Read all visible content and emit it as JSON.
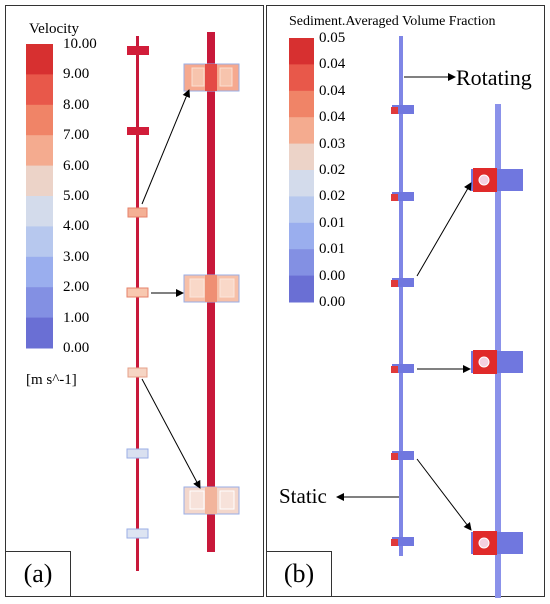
{
  "panel_a": {
    "label": "(a)",
    "colorbar": {
      "title": "Velocity",
      "ticks": [
        "10.00",
        "9.00",
        "8.00",
        "7.00",
        "6.00",
        "5.00",
        "4.00",
        "3.00",
        "2.00",
        "1.00",
        "0.00"
      ],
      "unit": "[m s^-1]",
      "colors": [
        "#d73030",
        "#e8584a",
        "#f08467",
        "#f4ab8f",
        "#ecd3c8",
        "#d3dbeb",
        "#b7c8ee",
        "#9aaeee",
        "#8390e3",
        "#6a6fd4"
      ]
    }
  },
  "panel_b": {
    "label": "(b)",
    "colorbar": {
      "title": "Sediment.Averaged Volume Fraction",
      "ticks": [
        "0.05",
        "0.04",
        "0.04",
        "0.04",
        "0.03",
        "0.02",
        "0.02",
        "0.01",
        "0.01",
        "0.00",
        "0.00"
      ],
      "colors": [
        "#d73030",
        "#e8584a",
        "#f08467",
        "#f4ab8f",
        "#ecd3c8",
        "#d3dbeb",
        "#b7c8ee",
        "#9aaeee",
        "#8390e3",
        "#6a6fd4"
      ]
    },
    "rotating_label": "Rotating",
    "static_label": "Static"
  }
}
